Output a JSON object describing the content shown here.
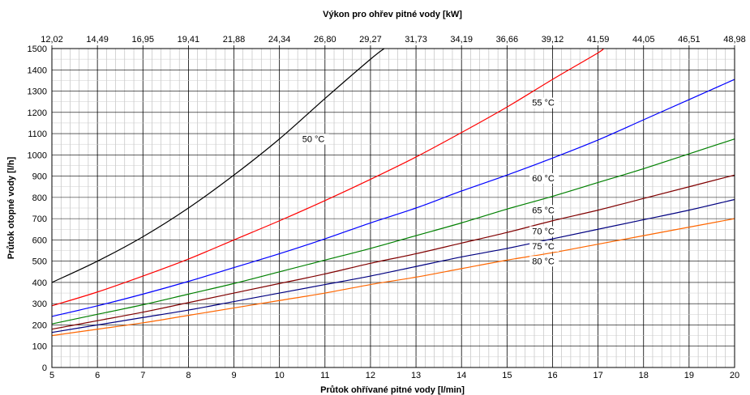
{
  "chart_data": {
    "type": "line",
    "title": "Výkon pro ohřev pitné vody [kW]",
    "xlabel": "Průtok ohřívané pitné vody [l/min]",
    "ylabel": "Průtok otopné vody [l/h]",
    "xlim": [
      5,
      20
    ],
    "ylim": [
      0,
      1500
    ],
    "grid": true,
    "x_ticks": [
      "5",
      "6",
      "7",
      "8",
      "9",
      "10",
      "11",
      "12",
      "13",
      "14",
      "15",
      "16",
      "17",
      "18",
      "19",
      "20"
    ],
    "y_ticks": [
      "0",
      "100",
      "200",
      "300",
      "400",
      "500",
      "600",
      "700",
      "800",
      "900",
      "1000",
      "1100",
      "1200",
      "1300",
      "1400",
      "1500"
    ],
    "top_axis_ticks": [
      "12,02",
      "14,49",
      "16,95",
      "19,41",
      "21,88",
      "24,34",
      "26,80",
      "29,27",
      "31,73",
      "34,19",
      "36,66",
      "39,12",
      "41,59",
      "44,05",
      "46,51",
      "48,98"
    ],
    "series": [
      {
        "name": "50 °C",
        "color": "#000000",
        "label_x": 10.5,
        "label_y": 1065,
        "points": [
          [
            5,
            400
          ],
          [
            6,
            500
          ],
          [
            7,
            615
          ],
          [
            8,
            750
          ],
          [
            9,
            905
          ],
          [
            10,
            1075
          ],
          [
            11,
            1265
          ],
          [
            12,
            1450
          ],
          [
            12.3,
            1500
          ]
        ]
      },
      {
        "name": "55 °C",
        "color": "#ff0000",
        "label_x": 15.55,
        "label_y": 1235,
        "points": [
          [
            5,
            290
          ],
          [
            6,
            355
          ],
          [
            7,
            430
          ],
          [
            8,
            510
          ],
          [
            9,
            600
          ],
          [
            10,
            690
          ],
          [
            11,
            785
          ],
          [
            12,
            885
          ],
          [
            13,
            990
          ],
          [
            14,
            1105
          ],
          [
            15,
            1225
          ],
          [
            16,
            1355
          ],
          [
            17,
            1480
          ],
          [
            17.1,
            1500
          ]
        ]
      },
      {
        "name": "60 °C",
        "color": "#0000ff",
        "label_x": 15.55,
        "label_y": 880,
        "points": [
          [
            5,
            240
          ],
          [
            6,
            290
          ],
          [
            7,
            345
          ],
          [
            8,
            405
          ],
          [
            9,
            470
          ],
          [
            10,
            535
          ],
          [
            11,
            605
          ],
          [
            12,
            680
          ],
          [
            13,
            750
          ],
          [
            14,
            830
          ],
          [
            15,
            905
          ],
          [
            16,
            985
          ],
          [
            17,
            1070
          ],
          [
            18,
            1165
          ],
          [
            19,
            1260
          ],
          [
            20,
            1355
          ]
        ]
      },
      {
        "name": "65 °C",
        "color": "#008000",
        "label_x": 15.55,
        "label_y": 730,
        "points": [
          [
            5,
            205
          ],
          [
            6,
            250
          ],
          [
            7,
            295
          ],
          [
            8,
            345
          ],
          [
            9,
            395
          ],
          [
            10,
            450
          ],
          [
            11,
            505
          ],
          [
            12,
            560
          ],
          [
            13,
            620
          ],
          [
            14,
            680
          ],
          [
            15,
            745
          ],
          [
            16,
            805
          ],
          [
            17,
            870
          ],
          [
            18,
            935
          ],
          [
            19,
            1005
          ],
          [
            20,
            1075
          ]
        ]
      },
      {
        "name": "70 °C",
        "color": "#800000",
        "label_x": 15.55,
        "label_y": 630,
        "points": [
          [
            5,
            180
          ],
          [
            6,
            220
          ],
          [
            7,
            260
          ],
          [
            8,
            305
          ],
          [
            9,
            350
          ],
          [
            10,
            395
          ],
          [
            11,
            440
          ],
          [
            12,
            490
          ],
          [
            13,
            535
          ],
          [
            14,
            585
          ],
          [
            15,
            635
          ],
          [
            16,
            690
          ],
          [
            17,
            740
          ],
          [
            18,
            795
          ],
          [
            19,
            850
          ],
          [
            20,
            905
          ]
        ]
      },
      {
        "name": "75 °C",
        "color": "#000080",
        "label_x": 15.55,
        "label_y": 560,
        "points": [
          [
            5,
            165
          ],
          [
            6,
            200
          ],
          [
            7,
            235
          ],
          [
            8,
            270
          ],
          [
            9,
            310
          ],
          [
            10,
            350
          ],
          [
            11,
            390
          ],
          [
            12,
            430
          ],
          [
            13,
            475
          ],
          [
            14,
            520
          ],
          [
            15,
            560
          ],
          [
            16,
            605
          ],
          [
            17,
            650
          ],
          [
            18,
            695
          ],
          [
            19,
            740
          ],
          [
            20,
            790
          ]
        ]
      },
      {
        "name": "80 °C",
        "color": "#ff6600",
        "label_x": 15.55,
        "label_y": 490,
        "points": [
          [
            5,
            150
          ],
          [
            6,
            180
          ],
          [
            7,
            210
          ],
          [
            8,
            245
          ],
          [
            9,
            280
          ],
          [
            10,
            315
          ],
          [
            11,
            350
          ],
          [
            12,
            390
          ],
          [
            13,
            425
          ],
          [
            14,
            465
          ],
          [
            15,
            505
          ],
          [
            16,
            540
          ],
          [
            17,
            580
          ],
          [
            18,
            620
          ],
          [
            19,
            660
          ],
          [
            20,
            700
          ]
        ]
      }
    ]
  }
}
